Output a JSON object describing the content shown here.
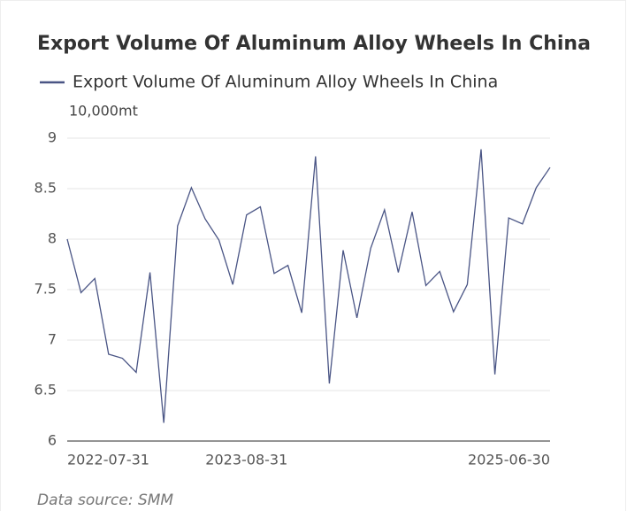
{
  "chart_data": {
    "type": "line",
    "title": "Export Volume Of Aluminum Alloy Wheels In China",
    "y_axis_label": "10,000mt",
    "source": "Data source:  SMM",
    "categories": [
      "2022-07-31",
      null,
      null,
      null,
      null,
      null,
      null,
      null,
      null,
      null,
      null,
      null,
      null,
      "2023-08-31",
      null,
      null,
      null,
      null,
      null,
      null,
      null,
      null,
      null,
      null,
      null,
      null,
      null,
      null,
      null,
      null,
      null,
      null,
      null,
      null,
      null,
      "2025-06-30"
    ],
    "series": [
      {
        "name": "Export Volume Of Aluminum Alloy Wheels In China",
        "color": "#4a5585",
        "values": [
          8.0,
          7.47,
          7.61,
          6.86,
          6.82,
          6.68,
          7.67,
          6.18,
          8.13,
          8.51,
          8.2,
          7.99,
          7.55,
          8.24,
          8.32,
          7.66,
          7.74,
          7.27,
          8.82,
          6.57,
          7.89,
          7.22,
          7.91,
          8.29,
          7.67,
          8.27,
          7.54,
          7.68,
          7.28,
          7.55,
          8.89,
          6.66,
          8.21,
          8.15,
          8.51,
          8.71
        ]
      }
    ],
    "ylim": [
      6,
      9
    ],
    "yticks": [
      6,
      6.5,
      7,
      7.5,
      8,
      8.5,
      9
    ],
    "grid": true
  }
}
